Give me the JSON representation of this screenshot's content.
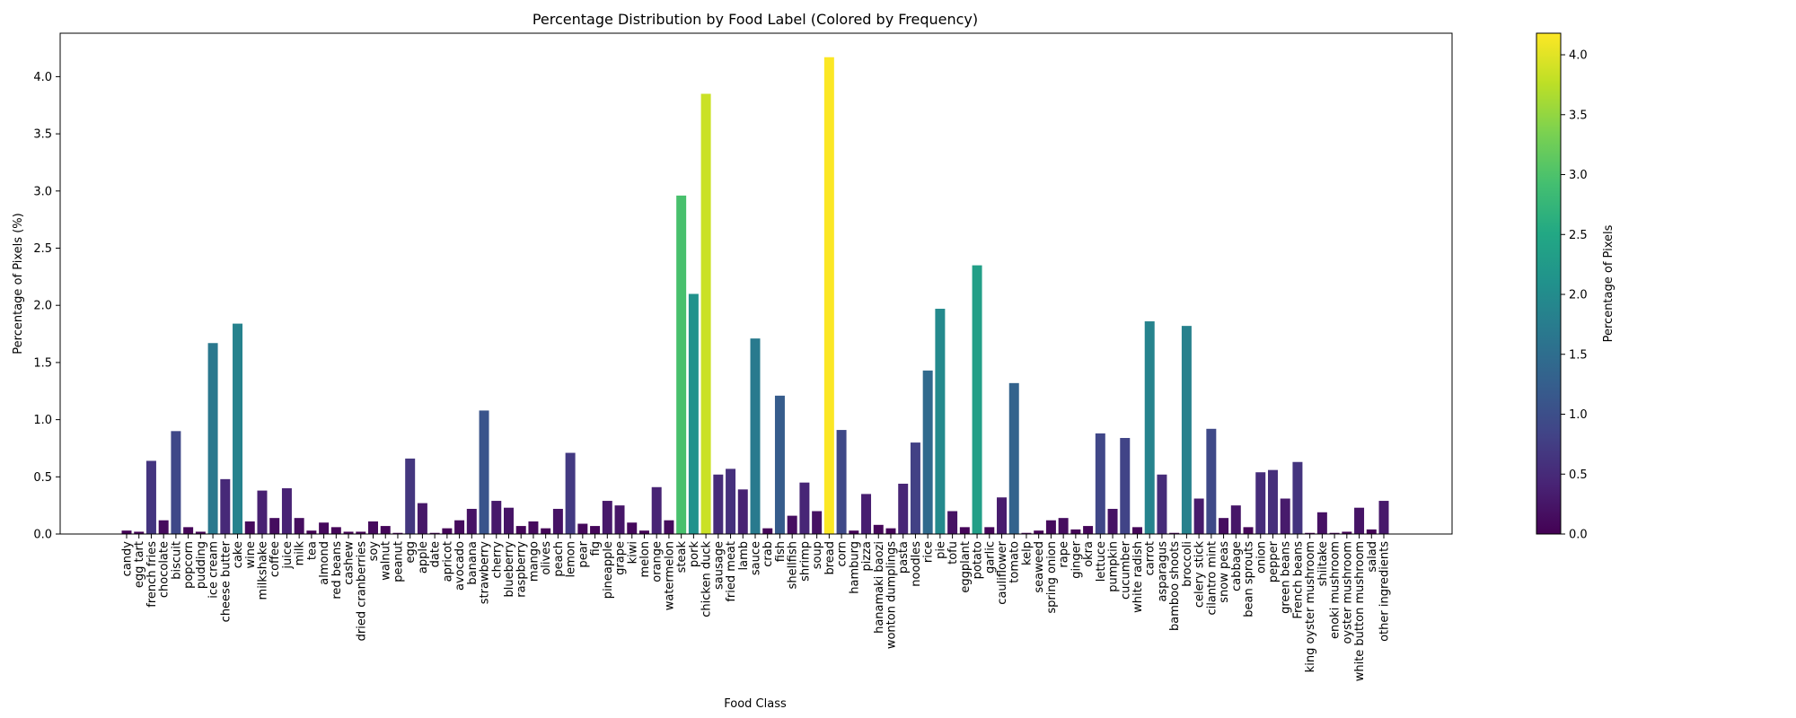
{
  "chart_data": {
    "type": "bar",
    "title": "Percentage Distribution by Food Label (Colored by Frequency)",
    "xlabel": "Food Class",
    "ylabel": "Percentage of Pixels (%)",
    "ylim": [
      0,
      4.38
    ],
    "yticks": [
      "0.0",
      "0.5",
      "1.0",
      "1.5",
      "2.0",
      "2.5",
      "3.0",
      "3.5",
      "4.0"
    ],
    "grid": false,
    "colorbar": {
      "label": "Percentage of Pixels",
      "colormap": "viridis",
      "range": [
        0,
        4.18
      ],
      "ticks": [
        "0.0",
        "0.5",
        "1.0",
        "1.5",
        "2.0",
        "2.5",
        "3.0",
        "3.5",
        "4.0"
      ]
    },
    "categories": [
      "candy",
      "egg tart",
      "french fries",
      "chocolate",
      "biscuit",
      "popcorn",
      "pudding",
      "ice cream",
      "cheese butter",
      "cake",
      "wine",
      "milkshake",
      "coffee",
      "juice",
      "milk",
      "tea",
      "almond",
      "red beans",
      "cashew",
      "dried cranberries",
      "soy",
      "walnut",
      "peanut",
      "egg",
      "apple",
      "date",
      "apricot",
      "avocado",
      "banana",
      "strawberry",
      "cherry",
      "blueberry",
      "raspberry",
      "mango",
      "olives",
      "peach",
      "lemon",
      "pear",
      "fig",
      "pineapple",
      "grape",
      "kiwi",
      "melon",
      "orange",
      "watermelon",
      "steak",
      "pork",
      "chicken duck",
      "sausage",
      "fried meat",
      "lamb",
      "sauce",
      "crab",
      "fish",
      "shellfish",
      "shrimp",
      "soup",
      "bread",
      "corn",
      "hamburg",
      "pizza",
      "hanamaki baozi",
      "wonton dumplings",
      "pasta",
      "noodles",
      "rice",
      "pie",
      "tofu",
      "eggplant",
      "potato",
      "garlic",
      "cauliflower",
      "tomato",
      "kelp",
      "seaweed",
      "spring onion",
      "rape",
      "ginger",
      "okra",
      "lettuce",
      "pumpkin",
      "cucumber",
      "white radish",
      "carrot",
      "asparagus",
      "bamboo shoots",
      "broccoli",
      "celery stick",
      "cilantro mint",
      "snow peas",
      "cabbage",
      "bean sprouts",
      "onion",
      "pepper",
      "green beans",
      "French beans",
      "king oyster mushroom",
      "shiitake",
      "enoki mushroom",
      "oyster mushroom",
      "white button mushroom",
      "salad",
      "other ingredients"
    ],
    "values": [
      0.03,
      0.02,
      0.64,
      0.12,
      0.9,
      0.06,
      0.02,
      1.67,
      0.48,
      1.84,
      0.11,
      0.38,
      0.14,
      0.4,
      0.14,
      0.03,
      0.1,
      0.06,
      0.02,
      0.02,
      0.11,
      0.07,
      0.01,
      0.66,
      0.27,
      0.01,
      0.05,
      0.12,
      0.22,
      1.08,
      0.29,
      0.23,
      0.07,
      0.11,
      0.05,
      0.22,
      0.71,
      0.09,
      0.07,
      0.29,
      0.25,
      0.1,
      0.03,
      0.41,
      0.12,
      2.96,
      2.1,
      3.85,
      0.52,
      0.57,
      0.39,
      1.71,
      0.05,
      1.21,
      0.16,
      0.45,
      0.2,
      4.17,
      0.91,
      0.03,
      0.35,
      0.08,
      0.05,
      0.44,
      0.8,
      1.43,
      1.97,
      0.2,
      0.06,
      2.35,
      0.06,
      0.32,
      1.32,
      0.01,
      0.03,
      0.12,
      0.14,
      0.04,
      0.07,
      0.88,
      0.22,
      0.84,
      0.06,
      1.86,
      0.52,
      0.01,
      1.82,
      0.31,
      0.92,
      0.14,
      0.25,
      0.06,
      0.54,
      0.56,
      0.31,
      0.63,
      0.01,
      0.19,
      0.01,
      0.02,
      0.23,
      0.04,
      0.29
    ]
  }
}
